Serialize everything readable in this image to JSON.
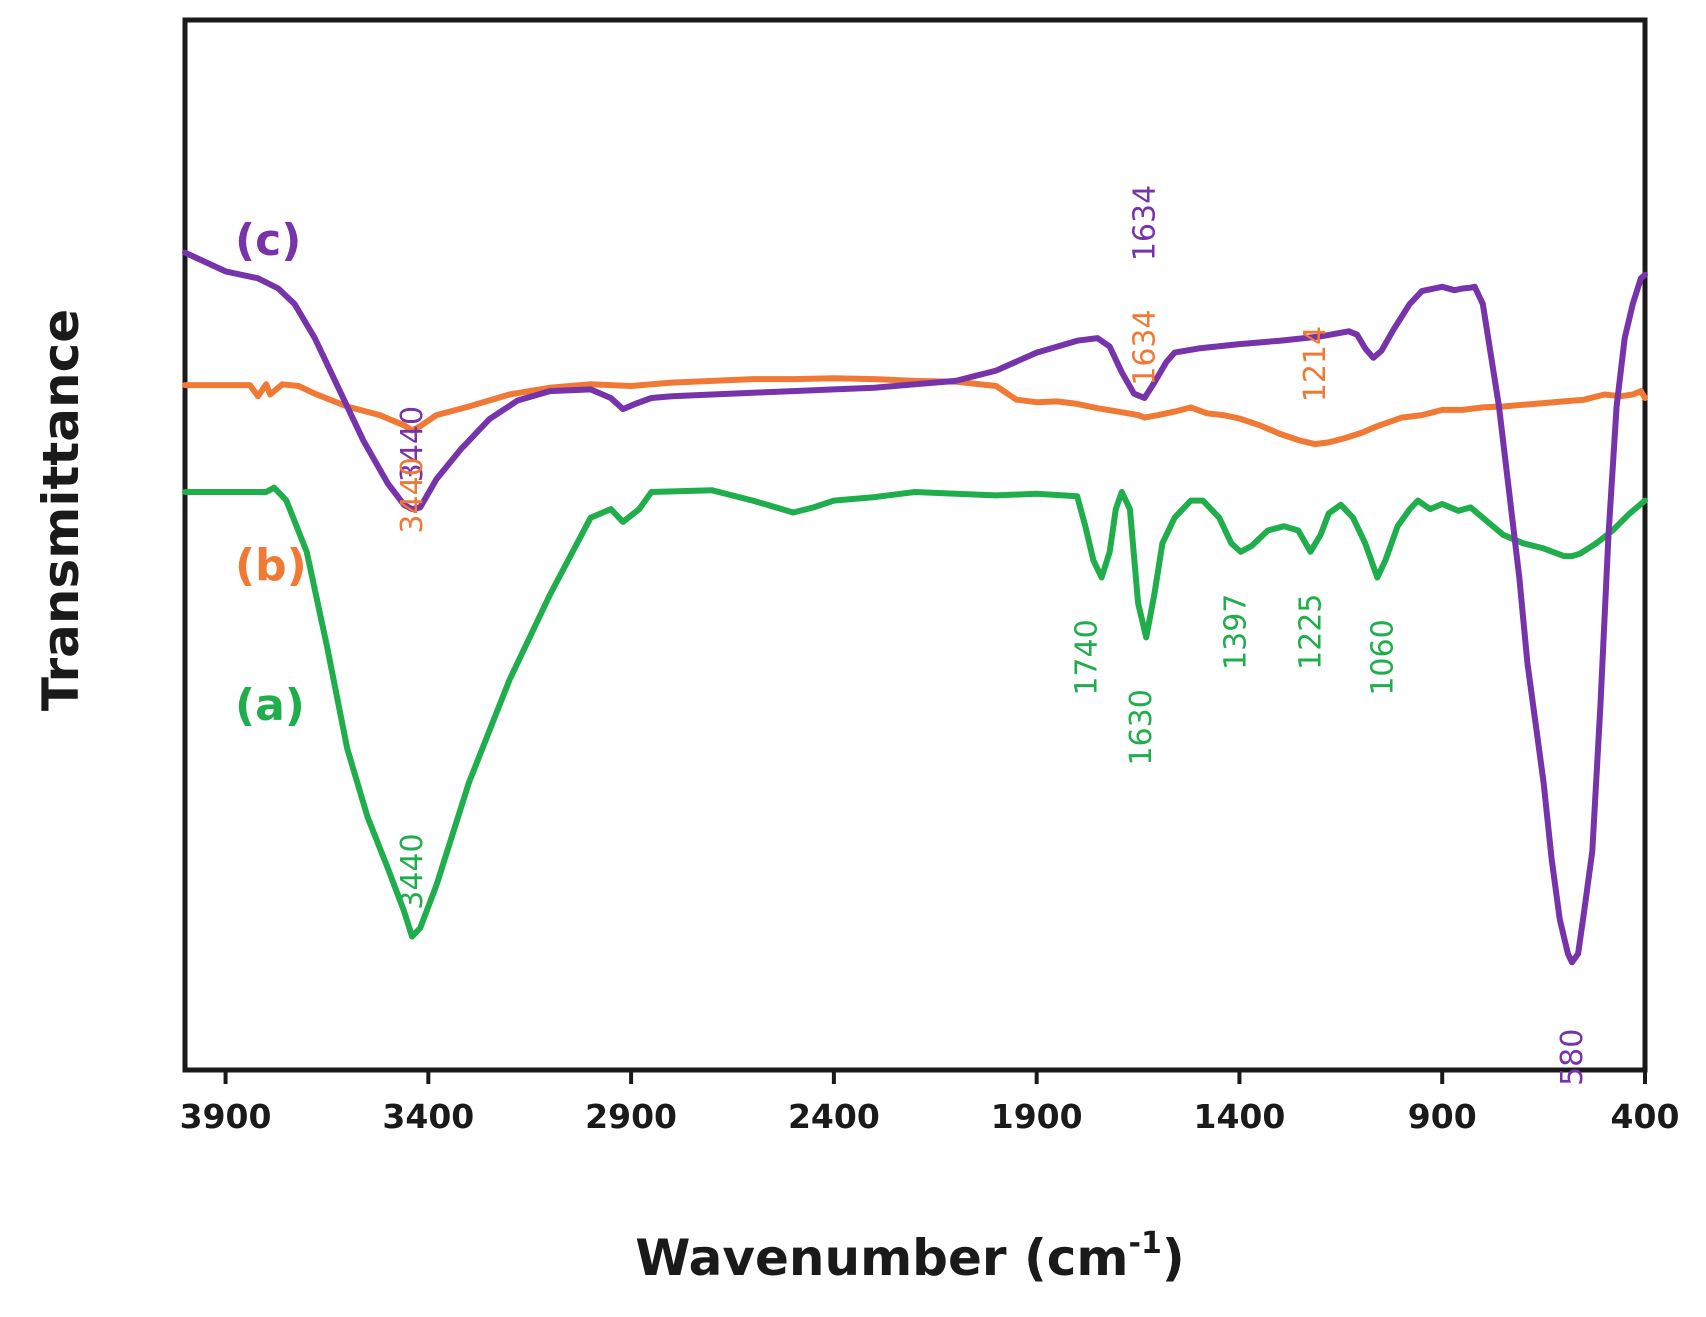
{
  "chart_data": {
    "type": "line",
    "title": "",
    "xlabel": "Wavenumber (cm",
    "xlabel_sup": "-1",
    "xlabel_close": ")",
    "ylabel": "Transmittance",
    "xlim": [
      4000,
      400
    ],
    "ylim": [
      0,
      100
    ],
    "x_reversed": true,
    "grid": false,
    "y_ticks_shown": false,
    "xticks": [
      3900,
      3400,
      2900,
      2400,
      1900,
      1400,
      900,
      400
    ],
    "xtick_labels": [
      "3900",
      "3400",
      "2900",
      "2400",
      "1900",
      "1400",
      "900",
      "400"
    ],
    "series": [
      {
        "name": "(a)",
        "color": "#1fae4b",
        "points": [
          [
            4000,
            60
          ],
          [
            3800,
            60
          ],
          [
            3780,
            60.5
          ],
          [
            3750,
            59
          ],
          [
            3700,
            53
          ],
          [
            3650,
            42
          ],
          [
            3600,
            30
          ],
          [
            3550,
            22
          ],
          [
            3500,
            16
          ],
          [
            3460,
            11
          ],
          [
            3440,
            8
          ],
          [
            3420,
            9
          ],
          [
            3380,
            14
          ],
          [
            3300,
            26
          ],
          [
            3200,
            38
          ],
          [
            3100,
            48
          ],
          [
            3000,
            57
          ],
          [
            2950,
            58
          ],
          [
            2920,
            56.5
          ],
          [
            2880,
            58
          ],
          [
            2850,
            60
          ],
          [
            2700,
            60.2
          ],
          [
            2600,
            59
          ],
          [
            2500,
            57.6
          ],
          [
            2450,
            58.2
          ],
          [
            2400,
            59
          ],
          [
            2300,
            59.4
          ],
          [
            2200,
            60
          ],
          [
            2100,
            59.8
          ],
          [
            2000,
            59.6
          ],
          [
            1900,
            59.8
          ],
          [
            1800,
            59.5
          ],
          [
            1780,
            56
          ],
          [
            1760,
            52
          ],
          [
            1740,
            50
          ],
          [
            1720,
            53
          ],
          [
            1705,
            58
          ],
          [
            1690,
            60
          ],
          [
            1670,
            58
          ],
          [
            1650,
            47
          ],
          [
            1630,
            43
          ],
          [
            1610,
            48
          ],
          [
            1590,
            54
          ],
          [
            1560,
            57
          ],
          [
            1520,
            59
          ],
          [
            1490,
            59
          ],
          [
            1450,
            57
          ],
          [
            1420,
            54
          ],
          [
            1397,
            53
          ],
          [
            1370,
            53.7
          ],
          [
            1330,
            55.5
          ],
          [
            1290,
            56
          ],
          [
            1255,
            55.5
          ],
          [
            1225,
            53
          ],
          [
            1200,
            55
          ],
          [
            1180,
            57.5
          ],
          [
            1150,
            58.5
          ],
          [
            1120,
            57
          ],
          [
            1090,
            54
          ],
          [
            1060,
            50
          ],
          [
            1040,
            52
          ],
          [
            1010,
            56
          ],
          [
            980,
            58
          ],
          [
            960,
            59
          ],
          [
            930,
            58
          ],
          [
            900,
            58.6
          ],
          [
            860,
            57.8
          ],
          [
            830,
            58.2
          ],
          [
            800,
            57
          ],
          [
            750,
            55
          ],
          [
            700,
            54
          ],
          [
            650,
            53.4
          ],
          [
            600,
            52.5
          ],
          [
            580,
            52.5
          ],
          [
            560,
            52.8
          ],
          [
            520,
            54
          ],
          [
            480,
            55.5
          ],
          [
            440,
            57.4
          ],
          [
            400,
            59
          ]
        ]
      },
      {
        "name": "(b)",
        "color": "#f07a35",
        "points": [
          [
            4000,
            72.5
          ],
          [
            3900,
            72.5
          ],
          [
            3840,
            72.5
          ],
          [
            3820,
            71.2
          ],
          [
            3800,
            72.6
          ],
          [
            3790,
            71.4
          ],
          [
            3760,
            72.6
          ],
          [
            3720,
            72.4
          ],
          [
            3680,
            71.5
          ],
          [
            3600,
            70
          ],
          [
            3520,
            69
          ],
          [
            3460,
            67.8
          ],
          [
            3440,
            67.2
          ],
          [
            3420,
            67.7
          ],
          [
            3380,
            69
          ],
          [
            3300,
            70
          ],
          [
            3200,
            71.4
          ],
          [
            3100,
            72.2
          ],
          [
            3000,
            72.6
          ],
          [
            2900,
            72.4
          ],
          [
            2800,
            72.8
          ],
          [
            2700,
            73
          ],
          [
            2600,
            73.2
          ],
          [
            2500,
            73.2
          ],
          [
            2400,
            73.3
          ],
          [
            2300,
            73.2
          ],
          [
            2200,
            73
          ],
          [
            2100,
            72.9
          ],
          [
            2000,
            72.4
          ],
          [
            1950,
            70.8
          ],
          [
            1900,
            70.5
          ],
          [
            1850,
            70.6
          ],
          [
            1800,
            70.3
          ],
          [
            1750,
            69.8
          ],
          [
            1700,
            69.4
          ],
          [
            1650,
            69
          ],
          [
            1634,
            68.7
          ],
          [
            1600,
            69
          ],
          [
            1560,
            69.4
          ],
          [
            1520,
            69.9
          ],
          [
            1480,
            69.2
          ],
          [
            1440,
            69
          ],
          [
            1400,
            68.6
          ],
          [
            1350,
            67.8
          ],
          [
            1300,
            66.8
          ],
          [
            1250,
            66
          ],
          [
            1214,
            65.6
          ],
          [
            1180,
            65.8
          ],
          [
            1140,
            66.3
          ],
          [
            1100,
            66.9
          ],
          [
            1060,
            67.7
          ],
          [
            1000,
            68.7
          ],
          [
            950,
            69
          ],
          [
            900,
            69.6
          ],
          [
            850,
            69.6
          ],
          [
            800,
            69.9
          ],
          [
            750,
            70
          ],
          [
            700,
            70.2
          ],
          [
            650,
            70.4
          ],
          [
            600,
            70.6
          ],
          [
            550,
            70.8
          ],
          [
            500,
            71.4
          ],
          [
            460,
            71.2
          ],
          [
            430,
            71.4
          ],
          [
            410,
            71.8
          ],
          [
            400,
            71
          ]
        ]
      },
      {
        "name": "(c)",
        "color": "#7733aa",
        "points": [
          [
            4000,
            88
          ],
          [
            3900,
            85.8
          ],
          [
            3820,
            85
          ],
          [
            3770,
            83.8
          ],
          [
            3730,
            82
          ],
          [
            3680,
            78
          ],
          [
            3620,
            72
          ],
          [
            3560,
            66
          ],
          [
            3500,
            61
          ],
          [
            3460,
            58.5
          ],
          [
            3440,
            58
          ],
          [
            3420,
            58.2
          ],
          [
            3380,
            61.5
          ],
          [
            3320,
            65
          ],
          [
            3250,
            68.5
          ],
          [
            3180,
            70.7
          ],
          [
            3100,
            71.8
          ],
          [
            3000,
            72
          ],
          [
            2950,
            71
          ],
          [
            2920,
            69.7
          ],
          [
            2890,
            70.3
          ],
          [
            2850,
            71
          ],
          [
            2800,
            71.2
          ],
          [
            2700,
            71.4
          ],
          [
            2600,
            71.6
          ],
          [
            2500,
            71.8
          ],
          [
            2400,
            72
          ],
          [
            2300,
            72.2
          ],
          [
            2200,
            72.6
          ],
          [
            2100,
            73
          ],
          [
            2000,
            74.2
          ],
          [
            1900,
            76.3
          ],
          [
            1800,
            77.7
          ],
          [
            1750,
            78
          ],
          [
            1720,
            77
          ],
          [
            1690,
            74
          ],
          [
            1660,
            71.5
          ],
          [
            1634,
            71
          ],
          [
            1610,
            72.8
          ],
          [
            1580,
            75.2
          ],
          [
            1560,
            76.3
          ],
          [
            1500,
            76.8
          ],
          [
            1400,
            77.3
          ],
          [
            1300,
            77.7
          ],
          [
            1200,
            78.2
          ],
          [
            1130,
            78.8
          ],
          [
            1110,
            78.4
          ],
          [
            1090,
            76.8
          ],
          [
            1070,
            75.7
          ],
          [
            1050,
            76.5
          ],
          [
            1020,
            79
          ],
          [
            980,
            82
          ],
          [
            950,
            83.5
          ],
          [
            900,
            84
          ],
          [
            870,
            83.6
          ],
          [
            850,
            83.8
          ],
          [
            830,
            83.9
          ],
          [
            820,
            84
          ],
          [
            800,
            82
          ],
          [
            780,
            76
          ],
          [
            760,
            70
          ],
          [
            740,
            62
          ],
          [
            710,
            50
          ],
          [
            690,
            40
          ],
          [
            670,
            33
          ],
          [
            650,
            26
          ],
          [
            630,
            17
          ],
          [
            610,
            10
          ],
          [
            590,
            6
          ],
          [
            580,
            5
          ],
          [
            565,
            6
          ],
          [
            550,
            11
          ],
          [
            530,
            18
          ],
          [
            510,
            35
          ],
          [
            490,
            55
          ],
          [
            470,
            70
          ],
          [
            450,
            78
          ],
          [
            430,
            82
          ],
          [
            410,
            85
          ],
          [
            400,
            85.4
          ]
        ]
      }
    ],
    "annotations": [
      {
        "text": "(c)",
        "series": "(c)",
        "kind": "series-label"
      },
      {
        "text": "(b)",
        "series": "(b)",
        "kind": "series-label"
      },
      {
        "text": "(a)",
        "series": "(a)",
        "kind": "series-label"
      },
      {
        "text": "3440",
        "series": "(c)",
        "x": 3440
      },
      {
        "text": "1634",
        "series": "(c)",
        "x": 1634
      },
      {
        "text": "580",
        "series": "(c)",
        "x": 580
      },
      {
        "text": "3440",
        "series": "(b)",
        "x": 3440
      },
      {
        "text": "1634",
        "series": "(b)",
        "x": 1634
      },
      {
        "text": "1214",
        "series": "(b)",
        "x": 1214
      },
      {
        "text": "3440",
        "series": "(a)",
        "x": 3440
      },
      {
        "text": "1740",
        "series": "(a)",
        "x": 1740
      },
      {
        "text": "1630",
        "series": "(a)",
        "x": 1630
      },
      {
        "text": "1397",
        "series": "(a)",
        "x": 1397
      },
      {
        "text": "1225",
        "series": "(a)",
        "x": 1225
      },
      {
        "text": "1060",
        "series": "(a)",
        "x": 1060
      }
    ]
  }
}
